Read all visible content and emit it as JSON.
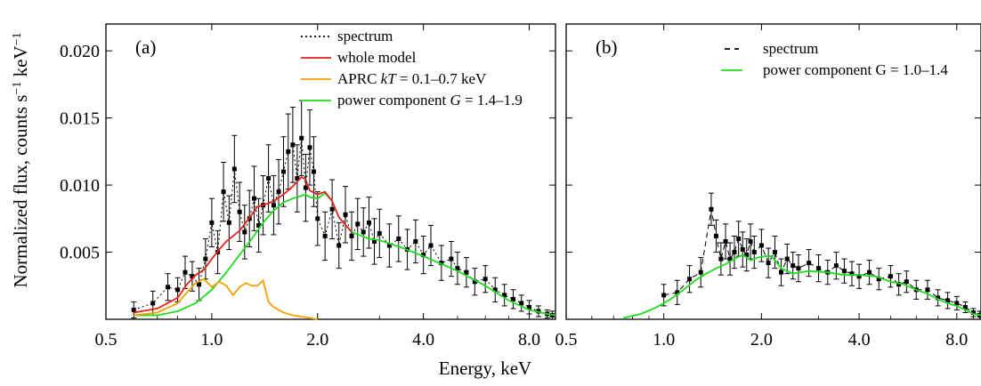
{
  "figure": {
    "ylabel": "Normalized flux, counts s",
    "ylabel_sup1": "−1",
    "ylabel_mid": " keV",
    "ylabel_sup2": "−1",
    "xlabel": "Energy, keV"
  },
  "chart_data": [
    {
      "type": "line",
      "panel_label": "(a)",
      "xscale": "log",
      "xlim": [
        0.5,
        9.5
      ],
      "ylim": [
        0,
        0.022
      ],
      "xticks": [
        0.5,
        1.0,
        2.0,
        4.0,
        8.0
      ],
      "xtick_labels": [
        "0.5",
        "1.0",
        "2.0",
        "4.0",
        "8.0"
      ],
      "yticks": [
        0.005,
        0.01,
        0.015,
        0.02
      ],
      "ytick_labels": [
        "0.005",
        "0.010",
        "0.015",
        "0.020"
      ],
      "legend": {
        "placement": "top-center",
        "entries": [
          {
            "key": "spectrum",
            "label": "spectrum",
            "color": "#000000",
            "style": "dotted"
          },
          {
            "key": "whole",
            "label": "whole model",
            "color": "#e8201a",
            "style": "solid"
          },
          {
            "key": "aprc",
            "label_pre": "APRC ",
            "label_it": "kT",
            "label_post": " = 0.1–0.7 keV",
            "color": "#f5a000",
            "style": "solid"
          },
          {
            "key": "power",
            "label_pre": "power component ",
            "label_it": "G",
            "label_post": " = 1.4–1.9",
            "color": "#1edc1e",
            "style": "solid"
          }
        ]
      },
      "series": [
        {
          "key": "power",
          "color": "#1edc1e",
          "style": "solid",
          "x": [
            0.6,
            0.7,
            0.8,
            0.9,
            1.0,
            1.1,
            1.2,
            1.3,
            1.4,
            1.5,
            1.6,
            1.7,
            1.8,
            1.85,
            1.9,
            2.0,
            2.1,
            2.2,
            2.3,
            2.5,
            2.8,
            3.0,
            3.5,
            4.0,
            5.0,
            6.0,
            7.0,
            8.0,
            9.0,
            9.5
          ],
          "y": [
            0.0003,
            0.0003,
            0.0006,
            0.0012,
            0.0022,
            0.0035,
            0.0048,
            0.006,
            0.0072,
            0.0081,
            0.0087,
            0.009,
            0.0092,
            0.0093,
            0.0091,
            0.009,
            0.0094,
            0.0088,
            0.0076,
            0.0065,
            0.006,
            0.0059,
            0.0053,
            0.0047,
            0.0036,
            0.0025,
            0.0014,
            0.0007,
            0.0004,
            0.0003
          ]
        },
        {
          "key": "whole",
          "color": "#e8201a",
          "style": "solid",
          "x": [
            0.6,
            0.7,
            0.8,
            0.85,
            0.9,
            0.95,
            1.0,
            1.05,
            1.1,
            1.2,
            1.3,
            1.35,
            1.4,
            1.5,
            1.6,
            1.7,
            1.8,
            1.85,
            1.9,
            2.0,
            2.1,
            2.2,
            2.3,
            2.5
          ],
          "y": [
            0.0005,
            0.0008,
            0.0016,
            0.0026,
            0.0033,
            0.0037,
            0.0045,
            0.0052,
            0.0058,
            0.0066,
            0.0078,
            0.0084,
            0.0085,
            0.0088,
            0.0093,
            0.0099,
            0.0106,
            0.0104,
            0.0096,
            0.0093,
            0.0095,
            0.0088,
            0.0076,
            0.0065
          ]
        },
        {
          "key": "aprc",
          "color": "#f5a000",
          "style": "solid",
          "x": [
            0.6,
            0.7,
            0.8,
            0.85,
            0.9,
            0.95,
            1.0,
            1.05,
            1.1,
            1.15,
            1.2,
            1.25,
            1.3,
            1.35,
            1.4,
            1.45,
            1.5,
            1.6,
            1.7,
            1.8,
            1.9,
            2.0
          ],
          "y": [
            0.0003,
            0.0005,
            0.0012,
            0.002,
            0.0027,
            0.003,
            0.0024,
            0.0028,
            0.0025,
            0.0018,
            0.0024,
            0.0027,
            0.0025,
            0.0025,
            0.0029,
            0.0013,
            0.0009,
            0.0005,
            0.0003,
            0.0002,
            0.0001,
            0.0
          ]
        }
      ],
      "spectrum": {
        "color": "#000000",
        "x": [
          0.6,
          0.68,
          0.75,
          0.8,
          0.84,
          0.88,
          0.92,
          0.96,
          1.0,
          1.04,
          1.08,
          1.12,
          1.16,
          1.2,
          1.24,
          1.28,
          1.32,
          1.36,
          1.4,
          1.45,
          1.5,
          1.55,
          1.6,
          1.65,
          1.7,
          1.75,
          1.8,
          1.85,
          1.9,
          1.95,
          2.0,
          2.1,
          2.2,
          2.3,
          2.4,
          2.5,
          2.6,
          2.7,
          2.8,
          2.9,
          3.0,
          3.2,
          3.4,
          3.6,
          3.8,
          4.0,
          4.2,
          4.5,
          4.8,
          5.0,
          5.3,
          5.6,
          6.0,
          6.4,
          6.8,
          7.2,
          7.6,
          8.0,
          8.5,
          9.0,
          9.3
        ],
        "y": [
          0.0007,
          0.0012,
          0.0024,
          0.0022,
          0.0035,
          0.0032,
          0.0026,
          0.0045,
          0.0072,
          0.005,
          0.0095,
          0.0072,
          0.0112,
          0.008,
          0.0065,
          0.0075,
          0.009,
          0.007,
          0.0085,
          0.0105,
          0.0085,
          0.0095,
          0.011,
          0.0125,
          0.013,
          0.0105,
          0.0135,
          0.0098,
          0.0128,
          0.011,
          0.0075,
          0.0062,
          0.0082,
          0.0055,
          0.0078,
          0.0062,
          0.0071,
          0.0065,
          0.0072,
          0.0058,
          0.0064,
          0.0055,
          0.006,
          0.0052,
          0.0058,
          0.0048,
          0.0055,
          0.0042,
          0.0045,
          0.0038,
          0.0035,
          0.0028,
          0.003,
          0.0022,
          0.0018,
          0.0015,
          0.0012,
          0.0009,
          0.0006,
          0.0004,
          0.0003
        ],
        "err": [
          0.0006,
          0.0009,
          0.001,
          0.0009,
          0.0012,
          0.0011,
          0.0012,
          0.0015,
          0.0018,
          0.0016,
          0.0022,
          0.002,
          0.0025,
          0.0022,
          0.002,
          0.0021,
          0.0024,
          0.002,
          0.0022,
          0.0025,
          0.0022,
          0.0024,
          0.0026,
          0.0028,
          0.0028,
          0.0025,
          0.0028,
          0.0025,
          0.0028,
          0.0026,
          0.002,
          0.0018,
          0.0022,
          0.0017,
          0.0021,
          0.0018,
          0.0019,
          0.0018,
          0.0019,
          0.0017,
          0.0018,
          0.0016,
          0.0017,
          0.0015,
          0.0016,
          0.0014,
          0.0015,
          0.0013,
          0.0013,
          0.0012,
          0.0011,
          0.001,
          0.001,
          0.0009,
          0.0008,
          0.0007,
          0.0006,
          0.0005,
          0.0004,
          0.0003,
          0.0003
        ]
      }
    },
    {
      "type": "line",
      "panel_label": "(b)",
      "xscale": "log",
      "xlim": [
        0.5,
        9.5
      ],
      "ylim": [
        0,
        0.022
      ],
      "xticks": [
        0.5,
        1.0,
        2.0,
        4.0,
        8.0
      ],
      "xtick_labels": [
        "0.5",
        "1.0",
        "2.0",
        "4.0",
        "8.0"
      ],
      "yticks": [
        0.005,
        0.01,
        0.015,
        0.02
      ],
      "ytick_labels": [
        "",
        "",
        "",
        ""
      ],
      "legend": {
        "placement": "top-center",
        "entries": [
          {
            "key": "spectrum",
            "label": "spectrum",
            "color": "#000000",
            "style": "dashed"
          },
          {
            "key": "power",
            "label": "power component G = 1.0–1.4",
            "color": "#1edc1e",
            "style": "solid"
          }
        ]
      },
      "series": [
        {
          "key": "power",
          "color": "#1edc1e",
          "style": "solid",
          "x": [
            0.75,
            0.85,
            0.95,
            1.05,
            1.15,
            1.25,
            1.35,
            1.45,
            1.55,
            1.65,
            1.75,
            1.85,
            1.95,
            2.05,
            2.15,
            2.3,
            2.5,
            2.8,
            3.2,
            3.6,
            4.0,
            4.5,
            5.0,
            5.5,
            6.0,
            6.5,
            7.0,
            7.5,
            8.0,
            8.5,
            9.0,
            9.5
          ],
          "y": [
            0.0001,
            0.0004,
            0.0009,
            0.0015,
            0.0022,
            0.0029,
            0.0034,
            0.0038,
            0.0041,
            0.0045,
            0.0048,
            0.0044,
            0.0046,
            0.0047,
            0.0047,
            0.0038,
            0.0034,
            0.0036,
            0.0035,
            0.0033,
            0.0033,
            0.0032,
            0.0028,
            0.0026,
            0.0022,
            0.0019,
            0.0015,
            0.0012,
            0.001,
            0.0007,
            0.0004,
            0.0003
          ]
        }
      ],
      "spectrum": {
        "color": "#000000",
        "x": [
          1.0,
          1.1,
          1.2,
          1.3,
          1.4,
          1.45,
          1.5,
          1.55,
          1.6,
          1.65,
          1.7,
          1.75,
          1.8,
          1.85,
          1.9,
          2.0,
          2.1,
          2.2,
          2.3,
          2.4,
          2.5,
          2.6,
          2.8,
          3.0,
          3.2,
          3.4,
          3.6,
          3.8,
          4.0,
          4.3,
          4.6,
          5.0,
          5.3,
          5.6,
          6.0,
          6.5,
          7.0,
          7.5,
          8.0,
          8.5,
          9.0,
          9.4
        ],
        "y": [
          0.0018,
          0.002,
          0.003,
          0.0035,
          0.0082,
          0.0062,
          0.0045,
          0.0058,
          0.0045,
          0.005,
          0.006,
          0.0052,
          0.0048,
          0.0058,
          0.005,
          0.0055,
          0.0042,
          0.005,
          0.0035,
          0.0045,
          0.004,
          0.0038,
          0.0042,
          0.0038,
          0.0035,
          0.004,
          0.0036,
          0.0034,
          0.0032,
          0.0035,
          0.003,
          0.0032,
          0.0026,
          0.0028,
          0.0022,
          0.0022,
          0.0016,
          0.0014,
          0.0012,
          0.0009,
          0.0005,
          0.0003
        ],
        "err": [
          0.0008,
          0.0009,
          0.001,
          0.0011,
          0.0012,
          0.0012,
          0.0012,
          0.0013,
          0.0012,
          0.0012,
          0.0013,
          0.0013,
          0.0012,
          0.0013,
          0.0012,
          0.0012,
          0.0011,
          0.0012,
          0.001,
          0.0011,
          0.001,
          0.001,
          0.001,
          0.001,
          0.0009,
          0.001,
          0.0009,
          0.0009,
          0.0009,
          0.0009,
          0.0008,
          0.0008,
          0.0008,
          0.0008,
          0.0007,
          0.0007,
          0.0006,
          0.0006,
          0.0005,
          0.0004,
          0.0003,
          0.0003
        ]
      }
    }
  ]
}
